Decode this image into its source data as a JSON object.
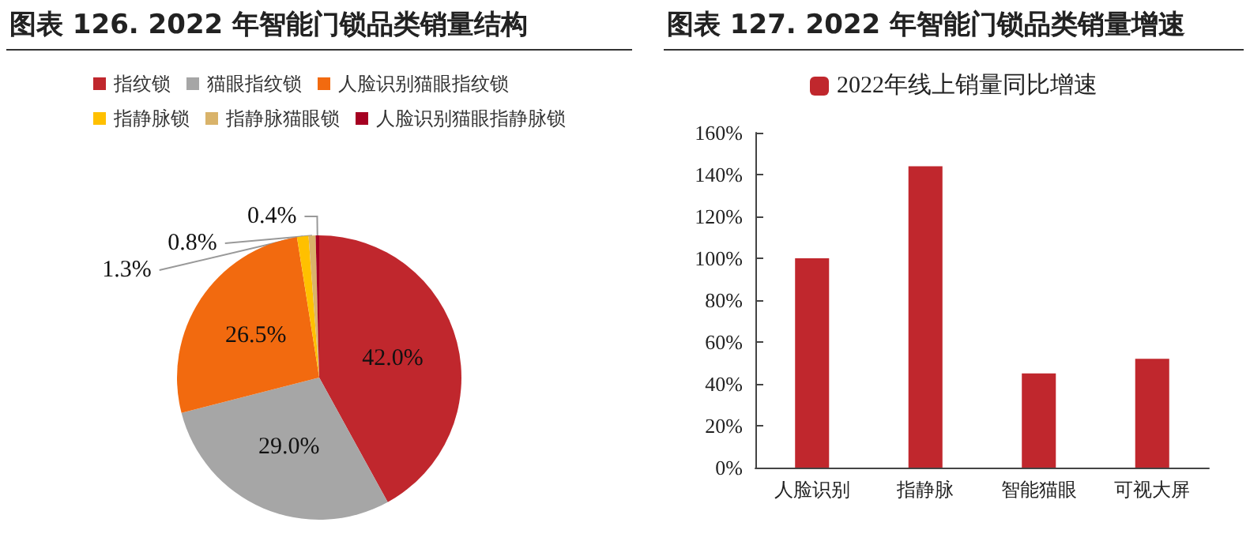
{
  "chart_data": [
    {
      "type": "pie",
      "title": "图表 126.  2022 年智能门锁品类销量结构",
      "categories": [
        "指纹锁",
        "猫眼指纹锁",
        "人脸识别猫眼指纹锁",
        "指静脉锁",
        "指静脉猫眼锁",
        "人脸识别猫眼指静脉锁"
      ],
      "values": [
        42.0,
        29.0,
        26.5,
        1.3,
        0.8,
        0.4
      ],
      "value_labels": [
        "42.0%",
        "29.0%",
        "26.5%",
        "1.3%",
        "0.8%",
        "0.4%"
      ],
      "colors": [
        "#c0272d",
        "#a6a6a6",
        "#f26a0f",
        "#ffc000",
        "#d9b36a",
        "#a50021"
      ],
      "legend": "top"
    },
    {
      "type": "bar",
      "title": "图表 127.  2022 年智能门锁品类销量增速",
      "categories": [
        "人脸识别",
        "指静脉",
        "智能猫眼",
        "可视大屏"
      ],
      "series": [
        {
          "name": "2022年线上销量同比增速",
          "color": "#c0272d",
          "values": [
            100,
            144,
            45,
            52
          ]
        }
      ],
      "ylim": [
        0,
        160
      ],
      "yticks": [
        {
          "value": 0,
          "label": "0%"
        },
        {
          "value": 20,
          "label": "20%"
        },
        {
          "value": 40,
          "label": "40%"
        },
        {
          "value": 60,
          "label": "60%"
        },
        {
          "value": 80,
          "label": "80%"
        },
        {
          "value": 100,
          "label": "100%"
        },
        {
          "value": 120,
          "label": "120%"
        },
        {
          "value": 140,
          "label": "140%"
        },
        {
          "value": 160,
          "label": "160%"
        }
      ],
      "grid": false,
      "legend": "top"
    }
  ]
}
